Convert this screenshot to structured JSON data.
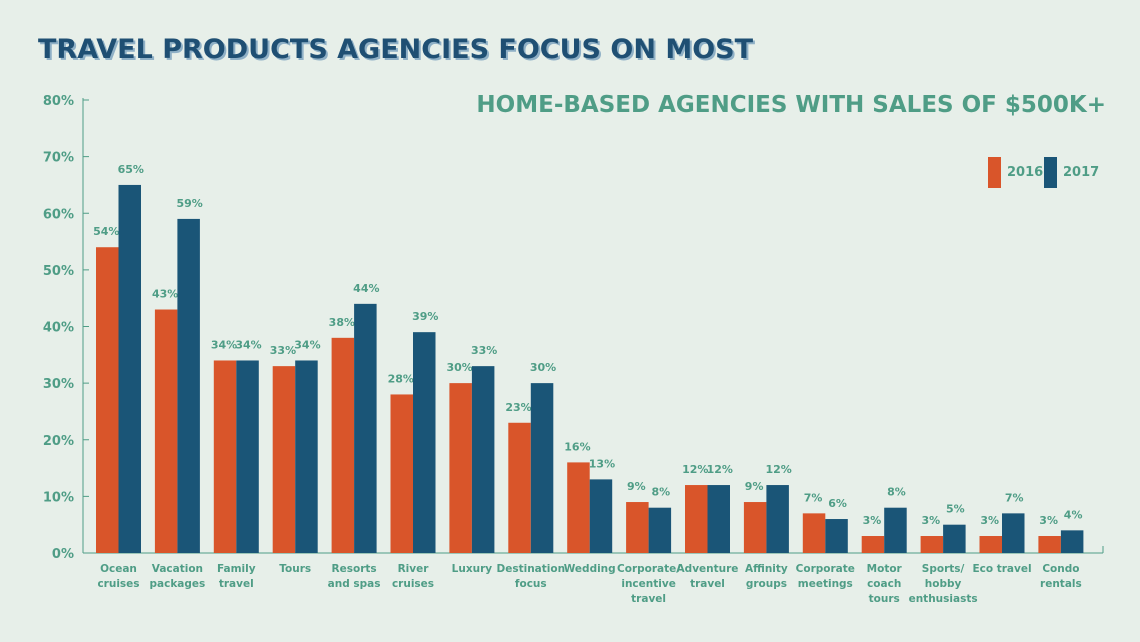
{
  "header": {
    "title": "TRAVEL PRODUCTS AGENCIES FOCUS ON MOST",
    "subtitle": "HOME-BASED AGENCIES WITH SALES OF $500K+"
  },
  "colors": {
    "background": "#e7efe9",
    "series_2016": "#d9552a",
    "series_2017": "#1a5577",
    "label_text": "#4f9d86",
    "axis": "#4f9d86"
  },
  "legend": {
    "items": [
      {
        "label": "2016",
        "color": "#d9552a"
      },
      {
        "label": "2017",
        "color": "#1a5577"
      }
    ]
  },
  "chart_data": {
    "type": "bar",
    "title": "TRAVEL PRODUCTS AGENCIES FOCUS ON MOST",
    "subtitle": "HOME-BASED AGENCIES WITH SALES OF $500K+",
    "categories": [
      [
        "Ocean",
        "cruises"
      ],
      [
        "Vacation",
        "packages"
      ],
      [
        "Family",
        "travel"
      ],
      [
        "Tours"
      ],
      [
        "Resorts",
        "and spas"
      ],
      [
        "River",
        "cruises"
      ],
      [
        "Luxury"
      ],
      [
        "Destination",
        "focus"
      ],
      [
        "Wedding"
      ],
      [
        "Corporate/",
        "incentive",
        "travel"
      ],
      [
        "Adventure",
        "travel"
      ],
      [
        "Affinity",
        "groups"
      ],
      [
        "Corporate",
        "meetings"
      ],
      [
        "Motor",
        "coach",
        "tours"
      ],
      [
        "Sports/",
        "hobby",
        "enthusiasts"
      ],
      [
        "Eco travel"
      ],
      [
        "Condo",
        "rentals"
      ]
    ],
    "series": [
      {
        "name": "2016",
        "values": [
          54,
          43,
          34,
          33,
          38,
          28,
          30,
          23,
          16,
          9,
          12,
          9,
          7,
          3,
          3,
          3,
          3
        ]
      },
      {
        "name": "2017",
        "values": [
          65,
          59,
          34,
          34,
          44,
          39,
          33,
          30,
          13,
          8,
          12,
          12,
          6,
          8,
          5,
          7,
          4
        ]
      }
    ],
    "ylim": [
      0,
      80
    ],
    "yticks": [
      0,
      10,
      20,
      30,
      40,
      50,
      60,
      70,
      80
    ],
    "ytick_labels": [
      "0%",
      "10%",
      "20%",
      "30%",
      "40%",
      "50%",
      "60%",
      "70%",
      "80%"
    ],
    "value_suffix": "%",
    "legend_position": "top-right",
    "grid": false
  }
}
